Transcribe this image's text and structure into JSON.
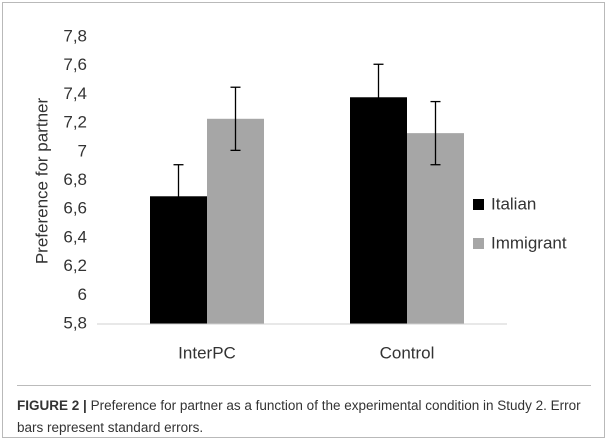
{
  "chart_data": {
    "type": "bar",
    "y_label": "Preference for partner",
    "caption_label": "FIGURE 2 |",
    "caption": "Preference for partner as a function of the experimental condition in Study 2. Error bars represent standard errors.",
    "categories": [
      "InterPC",
      "Control"
    ],
    "series": [
      {
        "name": "Italian",
        "color": "#000000",
        "values": [
          6.69,
          7.38
        ],
        "errors": [
          0.22,
          0.23
        ]
      },
      {
        "name": "Immigrant",
        "color": "#a6a6a6",
        "values": [
          7.23,
          7.13
        ],
        "errors": [
          0.22,
          0.22
        ]
      }
    ],
    "ylim": [
      5.8,
      7.8
    ],
    "yticks": [
      {
        "value": 5.8,
        "label": "5,8"
      },
      6,
      {
        "value": 6.2,
        "label": "6,2"
      },
      {
        "value": 6.4,
        "label": "6,4"
      },
      {
        "value": 6.6,
        "label": "6,6"
      },
      {
        "value": 6.8,
        "label": "6,8"
      },
      7,
      {
        "value": 7.2,
        "label": "7,2"
      },
      {
        "value": 7.4,
        "label": "7,4"
      },
      {
        "value": 7.6,
        "label": "7,6"
      },
      {
        "value": 7.8,
        "label": "7,8"
      }
    ],
    "grid": false,
    "legend": "right"
  }
}
